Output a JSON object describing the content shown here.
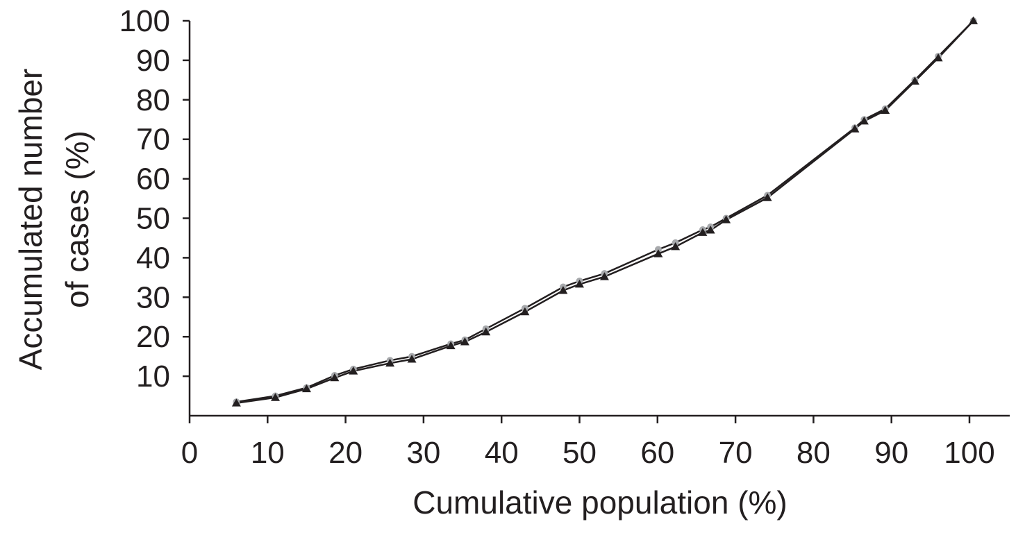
{
  "chart_data": {
    "type": "line",
    "title": "",
    "xlabel": "Cumulative population (%)",
    "ylabel_lines": [
      "Accumulated number",
      "of cases (%)"
    ],
    "xlim": [
      0,
      105
    ],
    "ylim": [
      0,
      100
    ],
    "x_ticks": [
      0,
      10,
      20,
      30,
      40,
      50,
      60,
      70,
      80,
      90,
      100
    ],
    "y_ticks": [
      10,
      20,
      30,
      40,
      50,
      60,
      70,
      80,
      90,
      100
    ],
    "grid": false,
    "legend": "none",
    "colors": {
      "axis": "#231f20",
      "line": "#231f20",
      "circle_marker": "#a7a9ac",
      "triangle_marker": "#231f20"
    },
    "series": [
      {
        "marker": "circle",
        "x": [
          6,
          11,
          15,
          18.6,
          21,
          25.7,
          28.5,
          33.5,
          35.3,
          38,
          43,
          47.9,
          50,
          53.2,
          60.1,
          62.3,
          65.8,
          66.8,
          68.8,
          74.1,
          85.3,
          86.5,
          89.2,
          93,
          96,
          100.5
        ],
        "y": [
          3.5,
          5,
          7.1,
          10.2,
          11.8,
          14,
          15,
          18.2,
          19.2,
          22,
          27.2,
          32.6,
          34.1,
          36,
          42.1,
          43.8,
          47.1,
          47.8,
          50,
          55.8,
          72.9,
          75,
          77.7,
          85,
          91,
          100
        ]
      },
      {
        "marker": "triangle",
        "x": [
          6,
          11,
          15,
          18.6,
          21,
          25.7,
          28.5,
          33.5,
          35.3,
          38,
          43,
          47.9,
          50,
          53.2,
          60.1,
          62.3,
          65.8,
          66.8,
          68.8,
          74.1,
          85.3,
          86.5,
          89.2,
          93,
          96,
          100.5
        ],
        "y": [
          3.2,
          4.6,
          6.8,
          9.6,
          11.3,
          13.3,
          14.3,
          17.7,
          18.7,
          21.2,
          26.3,
          31.7,
          33.3,
          35.2,
          41,
          42.8,
          46.4,
          47,
          49.6,
          55.2,
          72.6,
          74.6,
          77.3,
          84.7,
          90.6,
          100
        ]
      }
    ]
  }
}
